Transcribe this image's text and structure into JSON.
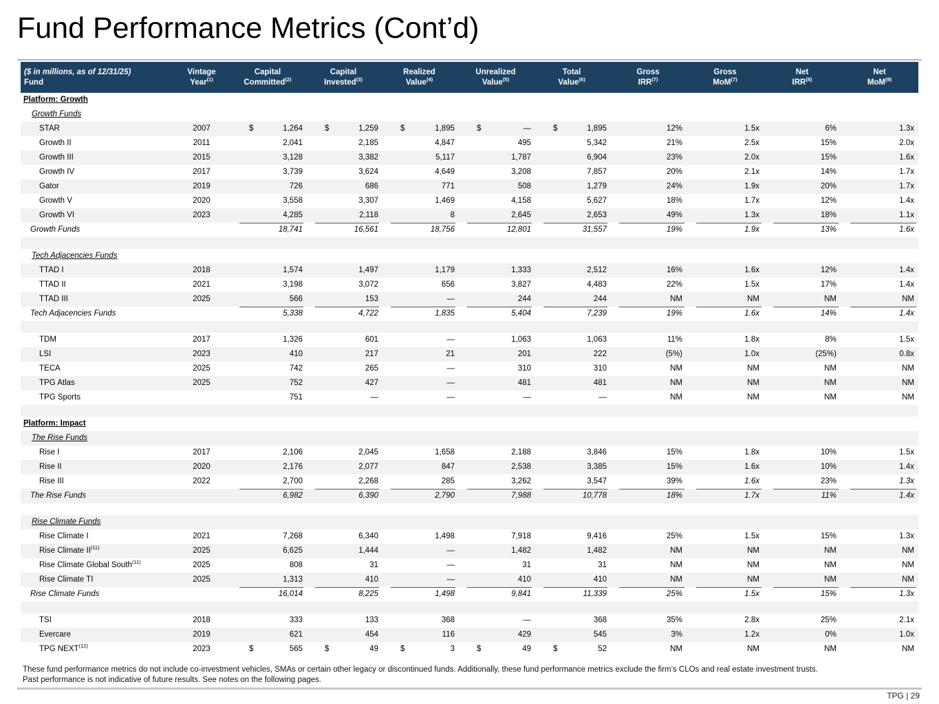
{
  "title": "Fund Performance Metrics (Cont’d)",
  "page_footer": "TPG | 29",
  "footnotes": [
    "These fund performance metrics do not include co-investment vehicles, SMAs or certain other legacy or discontinued funds. Additionally, these fund performance metrics exclude the firm’s CLOs and real estate investment trusts.",
    "Past performance is not indicative of future results. See notes on the following pages."
  ],
  "colors": {
    "header_navy": "#1d4161",
    "stripe_gray": "#f2f2f2",
    "sum_line": "#555555"
  },
  "table": {
    "header": {
      "left_top": "($ in millions, as of 12/31/25)",
      "left_bottom": "Fund",
      "columns": [
        {
          "line1": "Vintage",
          "line2": "Year",
          "sup": "(1)"
        },
        {
          "line1": "Capital",
          "line2": "Committed",
          "sup": "(2)"
        },
        {
          "line1": "Capital",
          "line2": "Invested",
          "sup": "(3)"
        },
        {
          "line1": "Realized",
          "line2": "Value",
          "sup": "(4)"
        },
        {
          "line1": "Unrealized",
          "line2": "Value",
          "sup": "(5)"
        },
        {
          "line1": "Total",
          "line2": "Value",
          "sup": "(6)"
        },
        {
          "line1": "Gross",
          "line2": "IRR",
          "sup": "(7)"
        },
        {
          "line1": "Gross",
          "line2": "MoM",
          "sup": "(7)"
        },
        {
          "line1": "Net",
          "line2": "IRR",
          "sup": "(8)"
        },
        {
          "line1": "Net",
          "line2": "MoM",
          "sup": "(9)"
        }
      ]
    },
    "value_columns": [
      "committed",
      "invested",
      "realized",
      "unrealized",
      "total",
      "gross_irr",
      "gross_mom",
      "net_irr",
      "net_mom"
    ],
    "rows": [
      {
        "type": "platform",
        "shade": "white",
        "label": "Platform: Growth"
      },
      {
        "type": "subheader",
        "shade": "white",
        "label": "Growth Funds"
      },
      {
        "type": "data",
        "shade": "gray",
        "name": "STAR",
        "vintage": "2007",
        "dollar": true,
        "v": [
          "1,264",
          "1,259",
          "1,895",
          "—",
          "1,895",
          "12%",
          "1.5x",
          "6%",
          "1.3x"
        ]
      },
      {
        "type": "data",
        "shade": "white",
        "name": "Growth II",
        "vintage": "2011",
        "v": [
          "2,041",
          "2,185",
          "4,847",
          "495",
          "5,342",
          "21%",
          "2.5x",
          "15%",
          "2.0x"
        ]
      },
      {
        "type": "data",
        "shade": "gray",
        "name": "Growth III",
        "vintage": "2015",
        "v": [
          "3,128",
          "3,382",
          "5,117",
          "1,787",
          "6,904",
          "23%",
          "2.0x",
          "15%",
          "1.6x"
        ]
      },
      {
        "type": "data",
        "shade": "white",
        "name": "Growth IV",
        "vintage": "2017",
        "v": [
          "3,739",
          "3,624",
          "4,649",
          "3,208",
          "7,857",
          "20%",
          "2.1x",
          "14%",
          "1.7x"
        ]
      },
      {
        "type": "data",
        "shade": "gray",
        "name": "Gator",
        "vintage": "2019",
        "v": [
          "726",
          "686",
          "771",
          "508",
          "1,279",
          "24%",
          "1.9x",
          "20%",
          "1.7x"
        ]
      },
      {
        "type": "data",
        "shade": "white",
        "name": "Growth V",
        "vintage": "2020",
        "v": [
          "3,558",
          "3,307",
          "1,469",
          "4,158",
          "5,627",
          "18%",
          "1.7x",
          "12%",
          "1.4x"
        ]
      },
      {
        "type": "data",
        "shade": "gray",
        "name": "Growth VI",
        "vintage": "2023",
        "v": [
          "4,285",
          "2,118",
          "8",
          "2,645",
          "2,653",
          "49%",
          "1.3x",
          "18%",
          "1.1x"
        ]
      },
      {
        "type": "total",
        "shade": "white",
        "name": "Growth Funds",
        "v": [
          "18,741",
          "16,561",
          "18,756",
          "12,801",
          "31,557",
          "19%",
          "1.9x",
          "13%",
          "1.6x"
        ]
      },
      {
        "type": "blank",
        "shade": "gray"
      },
      {
        "type": "subheader",
        "shade": "white",
        "label": "Tech Adjacencies Funds"
      },
      {
        "type": "data",
        "shade": "gray",
        "name": "TTAD I",
        "vintage": "2018",
        "v": [
          "1,574",
          "1,497",
          "1,179",
          "1,333",
          "2,512",
          "16%",
          "1.6x",
          "12%",
          "1.4x"
        ]
      },
      {
        "type": "data",
        "shade": "white",
        "name": "TTAD II",
        "vintage": "2021",
        "v": [
          "3,198",
          "3,072",
          "656",
          "3,827",
          "4,483",
          "22%",
          "1.5x",
          "17%",
          "1.4x"
        ]
      },
      {
        "type": "data",
        "shade": "gray",
        "name": "TTAD III",
        "vintage": "2025",
        "v": [
          "566",
          "153",
          "—",
          "244",
          "244",
          "NM",
          "NM",
          "NM",
          "NM"
        ]
      },
      {
        "type": "total",
        "shade": "white",
        "name": "Tech Adjacencies Funds",
        "v": [
          "5,338",
          "4,722",
          "1,835",
          "5,404",
          "7,239",
          "19%",
          "1.6x",
          "14%",
          "1.4x"
        ]
      },
      {
        "type": "blank",
        "shade": "gray"
      },
      {
        "type": "data",
        "shade": "white",
        "name": "TDM",
        "vintage": "2017",
        "v": [
          "1,326",
          "601",
          "—",
          "1,063",
          "1,063",
          "11%",
          "1.8x",
          "8%",
          "1.5x"
        ]
      },
      {
        "type": "data",
        "shade": "gray",
        "name": "LSI",
        "vintage": "2023",
        "v": [
          "410",
          "217",
          "21",
          "201",
          "222",
          "(5%)",
          "1.0x",
          "(25%)",
          "0.8x"
        ]
      },
      {
        "type": "data",
        "shade": "white",
        "name": "TECA",
        "vintage": "2025",
        "v": [
          "742",
          "265",
          "—",
          "310",
          "310",
          "NM",
          "NM",
          "NM",
          "NM"
        ]
      },
      {
        "type": "data",
        "shade": "gray",
        "name": "TPG Atlas",
        "vintage": "2025",
        "v": [
          "752",
          "427",
          "—",
          "481",
          "481",
          "NM",
          "NM",
          "NM",
          "NM"
        ]
      },
      {
        "type": "data",
        "shade": "white",
        "name": "TPG Sports",
        "vintage": "",
        "v": [
          "751",
          "—",
          "—",
          "—",
          "—",
          "NM",
          "NM",
          "NM",
          "NM"
        ]
      },
      {
        "type": "blank",
        "shade": "gray"
      },
      {
        "type": "platform",
        "shade": "white",
        "label": "Platform: Impact"
      },
      {
        "type": "subheader",
        "shade": "gray",
        "label": "The Rise Funds"
      },
      {
        "type": "data",
        "shade": "white",
        "name": "Rise I",
        "vintage": "2017",
        "v": [
          "2,106",
          "2,045",
          "1,658",
          "2,188",
          "3,846",
          "15%",
          "1.8x",
          "10%",
          "1.5x"
        ]
      },
      {
        "type": "data",
        "shade": "gray",
        "name": "Rise II",
        "vintage": "2020",
        "v": [
          "2,176",
          "2,077",
          "847",
          "2,538",
          "3,385",
          "15%",
          "1.6x",
          "10%",
          "1.4x"
        ]
      },
      {
        "type": "data",
        "shade": "white",
        "name": "Rise III",
        "vintage": "2022",
        "v": [
          "2,700",
          "2,268",
          "285",
          "3,262",
          "3,547",
          "39%",
          "1.6x",
          "23%",
          "1.3x"
        ],
        "italic_cols": [
          6,
          8
        ]
      },
      {
        "type": "total",
        "shade": "gray",
        "name": "The Rise Funds",
        "v": [
          "6,982",
          "6,390",
          "2,790",
          "7,988",
          "10,778",
          "18%",
          "1.7x",
          "11%",
          "1.4x"
        ]
      },
      {
        "type": "blank",
        "shade": "white"
      },
      {
        "type": "subheader",
        "shade": "gray",
        "label": "Rise Climate Funds"
      },
      {
        "type": "data",
        "shade": "white",
        "name": "Rise Climate I",
        "vintage": "2021",
        "v": [
          "7,268",
          "6,340",
          "1,498",
          "7,918",
          "9,416",
          "25%",
          "1.5x",
          "15%",
          "1.3x"
        ]
      },
      {
        "type": "data",
        "shade": "gray",
        "name": "Rise Climate II",
        "sup": "(11)",
        "vintage": "2025",
        "v": [
          "6,625",
          "1,444",
          "—",
          "1,482",
          "1,482",
          "NM",
          "NM",
          "NM",
          "NM"
        ]
      },
      {
        "type": "data",
        "shade": "white",
        "name": "Rise Climate Global South",
        "sup": "(11)",
        "vintage": "2025",
        "v": [
          "808",
          "31",
          "—",
          "31",
          "31",
          "NM",
          "NM",
          "NM",
          "NM"
        ]
      },
      {
        "type": "data",
        "shade": "gray",
        "name": "Rise Climate TI",
        "vintage": "2025",
        "v": [
          "1,313",
          "410",
          "—",
          "410",
          "410",
          "NM",
          "NM",
          "NM",
          "NM"
        ]
      },
      {
        "type": "total",
        "shade": "white",
        "name": "Rise Climate Funds",
        "v": [
          "16,014",
          "8,225",
          "1,498",
          "9,841",
          "11,339",
          "25%",
          "1.5x",
          "15%",
          "1.3x"
        ]
      },
      {
        "type": "blank",
        "shade": "gray"
      },
      {
        "type": "data",
        "shade": "white",
        "name": "TSI",
        "vintage": "2018",
        "v": [
          "333",
          "133",
          "368",
          "—",
          "368",
          "35%",
          "2.8x",
          "25%",
          "2.1x"
        ]
      },
      {
        "type": "data",
        "shade": "gray",
        "name": "Evercare",
        "vintage": "2019",
        "v": [
          "621",
          "454",
          "116",
          "429",
          "545",
          "3%",
          "1.2x",
          "0%",
          "1.0x"
        ]
      },
      {
        "type": "data",
        "shade": "white",
        "name": "TPG NEXT",
        "sup": "(12)",
        "vintage": "2023",
        "dollar": true,
        "v": [
          "565",
          "49",
          "3",
          "49",
          "52",
          "NM",
          "NM",
          "NM",
          "NM"
        ]
      }
    ]
  }
}
